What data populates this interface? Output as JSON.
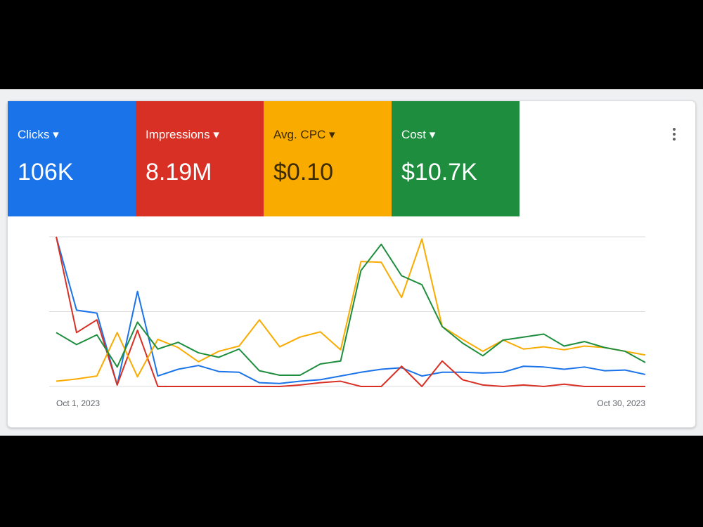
{
  "metrics": [
    {
      "label": "Clicks",
      "value": "106K",
      "color": "#1a73e8"
    },
    {
      "label": "Impressions",
      "value": "8.19M",
      "color": "#d93025"
    },
    {
      "label": "Avg. CPC",
      "value": "$0.10",
      "color": "#f9ab00"
    },
    {
      "label": "Cost",
      "value": "$10.7K",
      "color": "#1e8e3e"
    }
  ],
  "chart_data": {
    "type": "line",
    "categories": [
      "Oct 1, 2023",
      null,
      null,
      null,
      null,
      null,
      null,
      null,
      null,
      null,
      null,
      null,
      null,
      null,
      null,
      null,
      null,
      null,
      null,
      null,
      null,
      null,
      null,
      null,
      null,
      null,
      null,
      null,
      null,
      "Oct 30, 2023"
    ],
    "series": [
      {
        "color": "#1a73e8",
        "values": [
          2.0,
          1.02,
          0.98,
          0.02,
          1.27,
          0.14,
          0.23,
          0.28,
          0.2,
          0.19,
          0.05,
          0.04,
          0.07,
          0.09,
          0.14,
          0.19,
          0.23,
          0.25,
          0.14,
          0.19,
          0.19,
          0.18,
          0.19,
          0.27,
          0.26,
          0.23,
          0.26,
          0.21,
          0.22,
          0.16
        ]
      },
      {
        "color": "#d93025",
        "values": [
          2.0,
          0.72,
          0.89,
          0.02,
          0.75,
          0,
          0,
          0,
          0,
          0,
          0,
          0,
          0.02,
          0.05,
          0.07,
          0,
          0,
          0.27,
          0,
          0.34,
          0.09,
          0.02,
          0,
          0.02,
          0,
          0.03,
          0,
          0,
          0,
          0
        ]
      },
      {
        "color": "#f9ab00",
        "values": [
          0.07,
          0.1,
          0.14,
          0.72,
          0.13,
          0.63,
          0.52,
          0.33,
          0.47,
          0.54,
          0.89,
          0.53,
          0.66,
          0.73,
          0.49,
          1.67,
          1.66,
          1.19,
          1.97,
          0.8,
          0.63,
          0.47,
          0.62,
          0.5,
          0.53,
          0.49,
          0.54,
          0.52,
          0.47,
          0.42
        ]
      },
      {
        "color": "#1e8e3e",
        "values": [
          0.72,
          0.56,
          0.69,
          0.26,
          0.86,
          0.5,
          0.59,
          0.45,
          0.39,
          0.5,
          0.21,
          0.15,
          0.15,
          0.3,
          0.34,
          1.55,
          1.9,
          1.48,
          1.36,
          0.8,
          0.58,
          0.41,
          0.62,
          0.66,
          0.7,
          0.54,
          0.6,
          0.52,
          0.47,
          0.32
        ]
      }
    ],
    "ylim": [
      0,
      2
    ],
    "grid_lines": [
      0,
      1,
      2
    ],
    "grid": true
  }
}
